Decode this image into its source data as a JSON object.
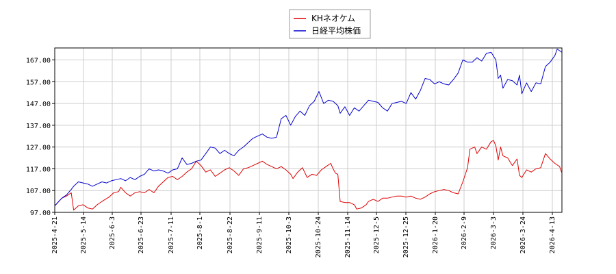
{
  "chart_data": {
    "type": "line",
    "title": "",
    "xlabel": "",
    "ylabel": "",
    "ylim": [
      97.0,
      172.5
    ],
    "yticks": [
      "97.00",
      "107.00",
      "117.00",
      "127.00",
      "137.00",
      "147.00",
      "157.00",
      "167.00"
    ],
    "xticks": [
      "2025-4-21",
      "2025-5-14",
      "2025-6-3",
      "2025-6-23",
      "2025-7-11",
      "2025-8-1",
      "2025-8-22",
      "2025-9-11",
      "2025-10-3",
      "2025-10-24",
      "2025-11-14",
      "2025-12-5",
      "2025-12-25",
      "2026-1-20",
      "2026-2-9",
      "2026-3-3",
      "2026-3-24",
      "2026-4-13"
    ],
    "grid": true,
    "legend_position": "top-center",
    "series": [
      {
        "name": "KHネオケム",
        "color": "#dd0000",
        "values": [
          [
            0,
            100.0
          ],
          [
            3,
            103.5
          ],
          [
            5,
            104.5
          ],
          [
            7,
            106.0
          ],
          [
            8,
            98.0
          ],
          [
            10,
            100.0
          ],
          [
            12,
            100.5
          ],
          [
            14,
            99.0
          ],
          [
            16,
            98.5
          ],
          [
            18,
            100.5
          ],
          [
            20,
            102.0
          ],
          [
            23,
            104.0
          ],
          [
            25,
            106.0
          ],
          [
            27,
            106.5
          ],
          [
            28,
            108.5
          ],
          [
            30,
            106.0
          ],
          [
            32,
            104.5
          ],
          [
            34,
            106.0
          ],
          [
            36,
            106.5
          ],
          [
            38,
            106.0
          ],
          [
            40,
            107.5
          ],
          [
            42,
            106.0
          ],
          [
            44,
            109.0
          ],
          [
            46,
            111.0
          ],
          [
            48,
            113.0
          ],
          [
            50,
            113.5
          ],
          [
            52,
            112.0
          ],
          [
            54,
            113.5
          ],
          [
            56,
            115.5
          ],
          [
            58,
            117.0
          ],
          [
            60,
            120.5
          ],
          [
            62,
            118.5
          ],
          [
            64,
            115.5
          ],
          [
            66,
            116.5
          ],
          [
            68,
            113.5
          ],
          [
            70,
            115.0
          ],
          [
            72,
            116.5
          ],
          [
            74,
            117.5
          ],
          [
            76,
            116.0
          ],
          [
            78,
            114.0
          ],
          [
            80,
            117.0
          ],
          [
            82,
            117.5
          ],
          [
            84,
            118.5
          ],
          [
            86,
            119.5
          ],
          [
            88,
            120.5
          ],
          [
            90,
            119.0
          ],
          [
            92,
            118.0
          ],
          [
            94,
            117.0
          ],
          [
            96,
            118.0
          ],
          [
            98,
            116.5
          ],
          [
            100,
            114.5
          ],
          [
            101,
            112.5
          ],
          [
            103,
            115.5
          ],
          [
            105,
            117.5
          ],
          [
            107,
            113.0
          ],
          [
            109,
            114.5
          ],
          [
            111,
            114.0
          ],
          [
            113,
            116.5
          ],
          [
            115,
            118.0
          ],
          [
            117,
            119.5
          ],
          [
            118,
            117.0
          ],
          [
            119,
            115.0
          ],
          [
            120,
            114.5
          ],
          [
            121,
            102.0
          ],
          [
            123,
            101.5
          ],
          [
            125,
            101.5
          ],
          [
            127,
            100.5
          ],
          [
            128,
            98.5
          ],
          [
            130,
            99.0
          ],
          [
            132,
            100.5
          ],
          [
            133,
            102.0
          ],
          [
            135,
            103.0
          ],
          [
            137,
            102.0
          ],
          [
            139,
            103.5
          ],
          [
            141,
            103.5
          ],
          [
            143,
            104.0
          ],
          [
            145,
            104.5
          ],
          [
            147,
            104.5
          ],
          [
            149,
            104.0
          ],
          [
            151,
            104.5
          ],
          [
            153,
            103.5
          ],
          [
            155,
            103.0
          ],
          [
            157,
            104.0
          ],
          [
            159,
            105.5
          ],
          [
            161,
            106.5
          ],
          [
            163,
            107.0
          ],
          [
            165,
            107.5
          ],
          [
            167,
            107.0
          ],
          [
            169,
            106.0
          ],
          [
            171,
            105.5
          ],
          [
            173,
            111.0
          ],
          [
            175,
            117.5
          ],
          [
            176,
            126.0
          ],
          [
            178,
            127.0
          ],
          [
            179,
            124.0
          ],
          [
            181,
            127.0
          ],
          [
            183,
            126.0
          ],
          [
            185,
            129.5
          ],
          [
            186,
            130.0
          ],
          [
            187,
            127.5
          ],
          [
            188,
            121.0
          ],
          [
            189,
            127.0
          ],
          [
            190,
            123.0
          ],
          [
            192,
            122.0
          ],
          [
            194,
            118.5
          ],
          [
            196,
            121.5
          ],
          [
            197,
            114.0
          ],
          [
            198,
            113.0
          ],
          [
            200,
            116.5
          ],
          [
            202,
            115.5
          ],
          [
            204,
            117.0
          ],
          [
            206,
            117.5
          ],
          [
            208,
            124.0
          ],
          [
            210,
            121.5
          ],
          [
            212,
            119.5
          ],
          [
            214,
            118.0
          ],
          [
            215,
            115.0
          ]
        ]
      },
      {
        "name": "日経平均株価",
        "color": "#0000cc",
        "values": [
          [
            0,
            100.0
          ],
          [
            3,
            103.5
          ],
          [
            5,
            105.0
          ],
          [
            7,
            107.5
          ],
          [
            8,
            109.0
          ],
          [
            10,
            111.0
          ],
          [
            12,
            110.5
          ],
          [
            14,
            110.0
          ],
          [
            16,
            109.0
          ],
          [
            18,
            110.0
          ],
          [
            20,
            111.0
          ],
          [
            22,
            110.5
          ],
          [
            24,
            111.5
          ],
          [
            26,
            112.0
          ],
          [
            28,
            112.5
          ],
          [
            30,
            111.5
          ],
          [
            32,
            113.0
          ],
          [
            34,
            112.0
          ],
          [
            36,
            113.5
          ],
          [
            38,
            114.5
          ],
          [
            40,
            117.0
          ],
          [
            42,
            116.0
          ],
          [
            44,
            116.5
          ],
          [
            46,
            116.0
          ],
          [
            48,
            115.0
          ],
          [
            50,
            116.5
          ],
          [
            52,
            117.0
          ],
          [
            54,
            122.0
          ],
          [
            56,
            119.0
          ],
          [
            58,
            119.5
          ],
          [
            60,
            120.5
          ],
          [
            62,
            121.0
          ],
          [
            64,
            124.0
          ],
          [
            66,
            127.0
          ],
          [
            68,
            126.5
          ],
          [
            70,
            124.0
          ],
          [
            72,
            125.5
          ],
          [
            74,
            124.0
          ],
          [
            76,
            123.0
          ],
          [
            78,
            125.5
          ],
          [
            80,
            127.0
          ],
          [
            82,
            129.0
          ],
          [
            84,
            131.0
          ],
          [
            86,
            132.0
          ],
          [
            88,
            133.0
          ],
          [
            90,
            131.5
          ],
          [
            92,
            131.0
          ],
          [
            94,
            131.5
          ],
          [
            96,
            140.0
          ],
          [
            98,
            141.5
          ],
          [
            100,
            137.0
          ],
          [
            102,
            141.0
          ],
          [
            104,
            143.5
          ],
          [
            106,
            141.5
          ],
          [
            108,
            146.0
          ],
          [
            110,
            148.0
          ],
          [
            112,
            152.5
          ],
          [
            114,
            147.0
          ],
          [
            116,
            148.5
          ],
          [
            118,
            148.0
          ],
          [
            120,
            146.0
          ],
          [
            121,
            142.5
          ],
          [
            123,
            145.5
          ],
          [
            125,
            141.5
          ],
          [
            127,
            145.0
          ],
          [
            129,
            143.5
          ],
          [
            131,
            146.0
          ],
          [
            133,
            148.5
          ],
          [
            135,
            148.0
          ],
          [
            137,
            147.5
          ],
          [
            139,
            145.0
          ],
          [
            141,
            143.5
          ],
          [
            143,
            147.0
          ],
          [
            145,
            147.5
          ],
          [
            147,
            148.0
          ],
          [
            149,
            147.0
          ],
          [
            151,
            152.0
          ],
          [
            153,
            149.0
          ],
          [
            155,
            153.0
          ],
          [
            157,
            158.5
          ],
          [
            159,
            158.0
          ],
          [
            161,
            156.0
          ],
          [
            163,
            157.0
          ],
          [
            165,
            156.0
          ],
          [
            167,
            155.5
          ],
          [
            169,
            158.0
          ],
          [
            171,
            161.0
          ],
          [
            173,
            167.0
          ],
          [
            175,
            166.0
          ],
          [
            177,
            166.0
          ],
          [
            179,
            168.0
          ],
          [
            181,
            166.5
          ],
          [
            183,
            170.0
          ],
          [
            185,
            170.5
          ],
          [
            187,
            167.0
          ],
          [
            188,
            158.5
          ],
          [
            189,
            160.0
          ],
          [
            190,
            154.0
          ],
          [
            192,
            158.0
          ],
          [
            194,
            157.5
          ],
          [
            196,
            155.5
          ],
          [
            197,
            160.0
          ],
          [
            198,
            151.5
          ],
          [
            200,
            156.5
          ],
          [
            202,
            152.5
          ],
          [
            204,
            156.5
          ],
          [
            206,
            156.0
          ],
          [
            208,
            164.0
          ],
          [
            210,
            166.0
          ],
          [
            212,
            169.0
          ],
          [
            213,
            172.0
          ],
          [
            215,
            170.5
          ]
        ]
      }
    ]
  }
}
